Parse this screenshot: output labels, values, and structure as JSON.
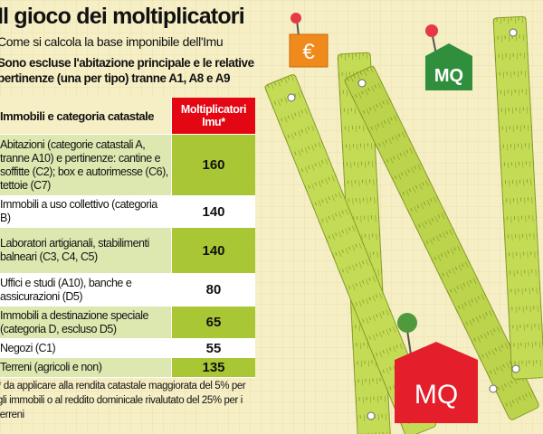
{
  "header": {
    "title": "Il gioco dei moltiplicatori",
    "subtitle": "Come si calcola la base imponibile dell'Imu",
    "deck": "Sono escluse l'abitazione principale e le relative pertinenze (una per tipo) tranne A1, A8 e A9"
  },
  "table": {
    "columns": [
      "Immobili e categoria catastale",
      "Moltiplicatori Imu*"
    ],
    "rows": [
      [
        "Abitazioni (categorie catastali A, tranne A10) e pertinenze: cantine e soffitte (C2); box e autorimesse (C6), tettoie (C7)",
        "160"
      ],
      [
        "Immobili a uso collettivo (categoria B)",
        "140"
      ],
      [
        "Laboratori artigianali, stabilimenti balneari (C3, C4, C5)",
        "140"
      ],
      [
        "Uffici e studi (A10), banche e assicurazioni (D5)",
        "80"
      ],
      [
        "Immobili a destinazione speciale (categoria D, escluso D5)",
        "65"
      ],
      [
        "Negozi (C1)",
        "55"
      ],
      [
        "Terreni (agricoli e non)",
        "135"
      ]
    ]
  },
  "note": "* da applicare alla rendita catastale maggiorata del 5% per gli immobili o al reddito dominicale rivalutato del 25% per i terreni",
  "signs": [
    "€",
    "MQ",
    "MQ"
  ]
}
